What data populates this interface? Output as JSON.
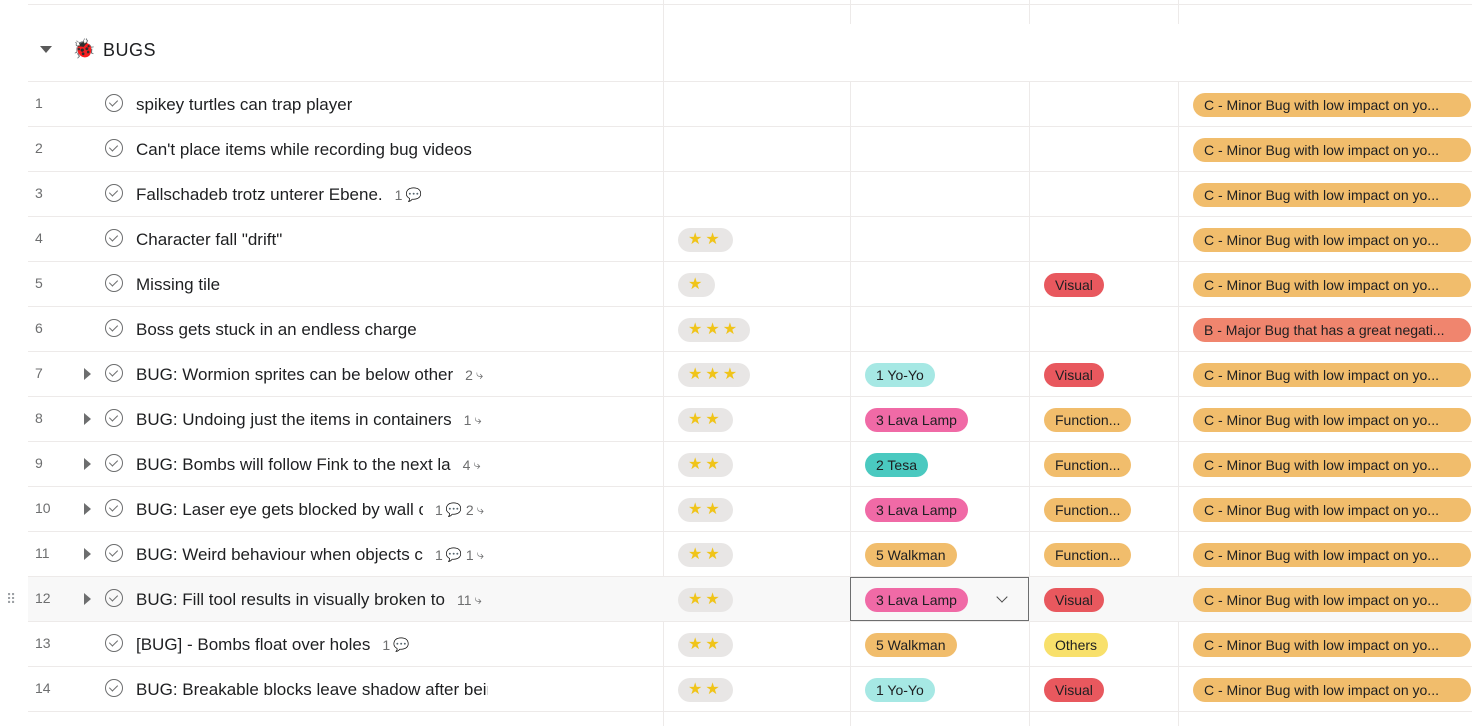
{
  "section": {
    "title": "BUGS",
    "icon": "ladybug-icon"
  },
  "colors": {
    "yoyo": "#a6e8e4",
    "lava": "#f06aa6",
    "tesa": "#4ac9c0",
    "walkman": "#f1bd6c",
    "visual": "#e8585e",
    "function": "#f1bd6c",
    "others": "#f8e06b",
    "minor": "#f1bd6c",
    "major": "#f0856e",
    "stars_bg": "#e8e6e5",
    "star": "#f0c419"
  },
  "rows": [
    {
      "num": "1",
      "name": "spikey turtles can trap player",
      "has_expand": false,
      "comments": "",
      "subtasks": "",
      "stars": "",
      "release": "",
      "category": "",
      "priority": "C - Minor Bug with low impact on yo..."
    },
    {
      "num": "2",
      "name": "Can't place items while recording bug videos",
      "has_expand": false,
      "comments": "",
      "subtasks": "",
      "stars": "",
      "release": "",
      "category": "",
      "priority": "C - Minor Bug with low impact on yo..."
    },
    {
      "num": "3",
      "name": "Fallschadeb trotz unterer Ebene.",
      "has_expand": false,
      "comments": "1",
      "subtasks": "",
      "stars": "",
      "release": "",
      "category": "",
      "priority": "C - Minor Bug with low impact on yo..."
    },
    {
      "num": "4",
      "name": "Character fall \"drift\"",
      "has_expand": false,
      "comments": "",
      "subtasks": "",
      "stars": "★★",
      "release": "",
      "category": "",
      "priority": "C - Minor Bug with low impact on yo..."
    },
    {
      "num": "5",
      "name": "Missing tile",
      "has_expand": false,
      "comments": "",
      "subtasks": "",
      "stars": "★",
      "release": "",
      "category": "Visual",
      "priority": "C - Minor Bug with low impact on yo..."
    },
    {
      "num": "6",
      "name": "Boss gets stuck in an endless charge",
      "has_expand": false,
      "comments": "",
      "subtasks": "",
      "stars": "★★★",
      "release": "",
      "category": "",
      "priority": "B - Major Bug that has a great negati..."
    },
    {
      "num": "7",
      "name": "BUG: Wormion sprites can be below other",
      "has_expand": true,
      "comments": "",
      "subtasks": "2",
      "stars": "★★★",
      "release": "1 Yo-Yo",
      "category": "Visual",
      "priority": "C - Minor Bug with low impact on yo..."
    },
    {
      "num": "8",
      "name": "BUG: Undoing just the items in containers",
      "has_expand": true,
      "comments": "",
      "subtasks": "1",
      "stars": "★★",
      "release": "3 Lava Lamp",
      "category": "Function...",
      "priority": "C - Minor Bug with low impact on yo..."
    },
    {
      "num": "9",
      "name": "BUG: Bombs will follow Fink to the next la",
      "has_expand": true,
      "comments": "",
      "subtasks": "4",
      "stars": "★★",
      "release": "2 Tesa",
      "category": "Function...",
      "priority": "C - Minor Bug with low impact on yo..."
    },
    {
      "num": "10",
      "name": "BUG: Laser eye gets blocked by wall c",
      "has_expand": true,
      "comments": "1",
      "subtasks": "2",
      "stars": "★★",
      "release": "3 Lava Lamp",
      "category": "Function...",
      "priority": "C - Minor Bug with low impact on yo..."
    },
    {
      "num": "11",
      "name": "BUG: Weird behaviour when objects c",
      "has_expand": true,
      "comments": "1",
      "subtasks": "1",
      "stars": "★★",
      "release": "5 Walkman",
      "category": "Function...",
      "priority": "C - Minor Bug with low impact on yo..."
    },
    {
      "num": "12",
      "name": "BUG: Fill tool results in visually broken to",
      "has_expand": true,
      "comments": "",
      "subtasks": "11",
      "stars": "★★",
      "release": "3 Lava Lamp",
      "category": "Visual",
      "priority": "C - Minor Bug with low impact on yo...",
      "hover": true
    },
    {
      "num": "13",
      "name": "[BUG] - Bombs float over holes",
      "has_expand": false,
      "comments": "1",
      "subtasks": "",
      "stars": "★★",
      "release": "5 Walkman",
      "category": "Others",
      "priority": "C - Minor Bug with low impact on yo..."
    },
    {
      "num": "14",
      "name": "BUG: Breakable blocks leave shadow after bein",
      "has_expand": false,
      "comments": "",
      "subtasks": "",
      "stars": "★★",
      "release": "1 Yo-Yo",
      "category": "Visual",
      "priority": "C - Minor Bug with low impact on yo..."
    }
  ]
}
